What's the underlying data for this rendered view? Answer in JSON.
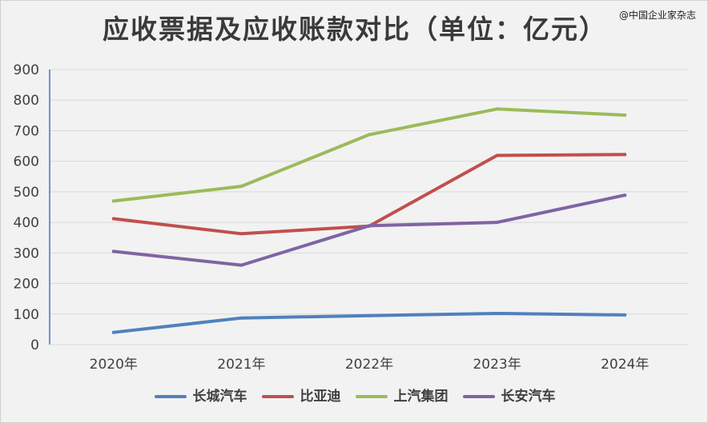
{
  "title": "应收票据及应收账款对比（单位：亿元）",
  "watermark": "@中国企业家杂志",
  "chart_data": {
    "type": "line",
    "title": "应收票据及应收账款对比（单位：亿元）",
    "xlabel": "",
    "ylabel": "",
    "categories": [
      "2020年",
      "2021年",
      "2022年",
      "2023年",
      "2024年"
    ],
    "ylim": [
      0,
      900
    ],
    "yticks": [
      0,
      100,
      200,
      300,
      400,
      500,
      600,
      700,
      800,
      900
    ],
    "grid": true,
    "legend_position": "bottom",
    "series": [
      {
        "name": "长城汽车",
        "color": "#4f81bd",
        "values": [
          40,
          87,
          95,
          102,
          97
        ]
      },
      {
        "name": "比亚迪",
        "color": "#c0504d",
        "values": [
          412,
          363,
          388,
          619,
          622
        ]
      },
      {
        "name": "上汽集团",
        "color": "#9bbb59",
        "values": [
          470,
          518,
          687,
          771,
          751
        ]
      },
      {
        "name": "长安汽车",
        "color": "#8064a2",
        "values": [
          305,
          260,
          389,
          400,
          489
        ]
      }
    ]
  }
}
